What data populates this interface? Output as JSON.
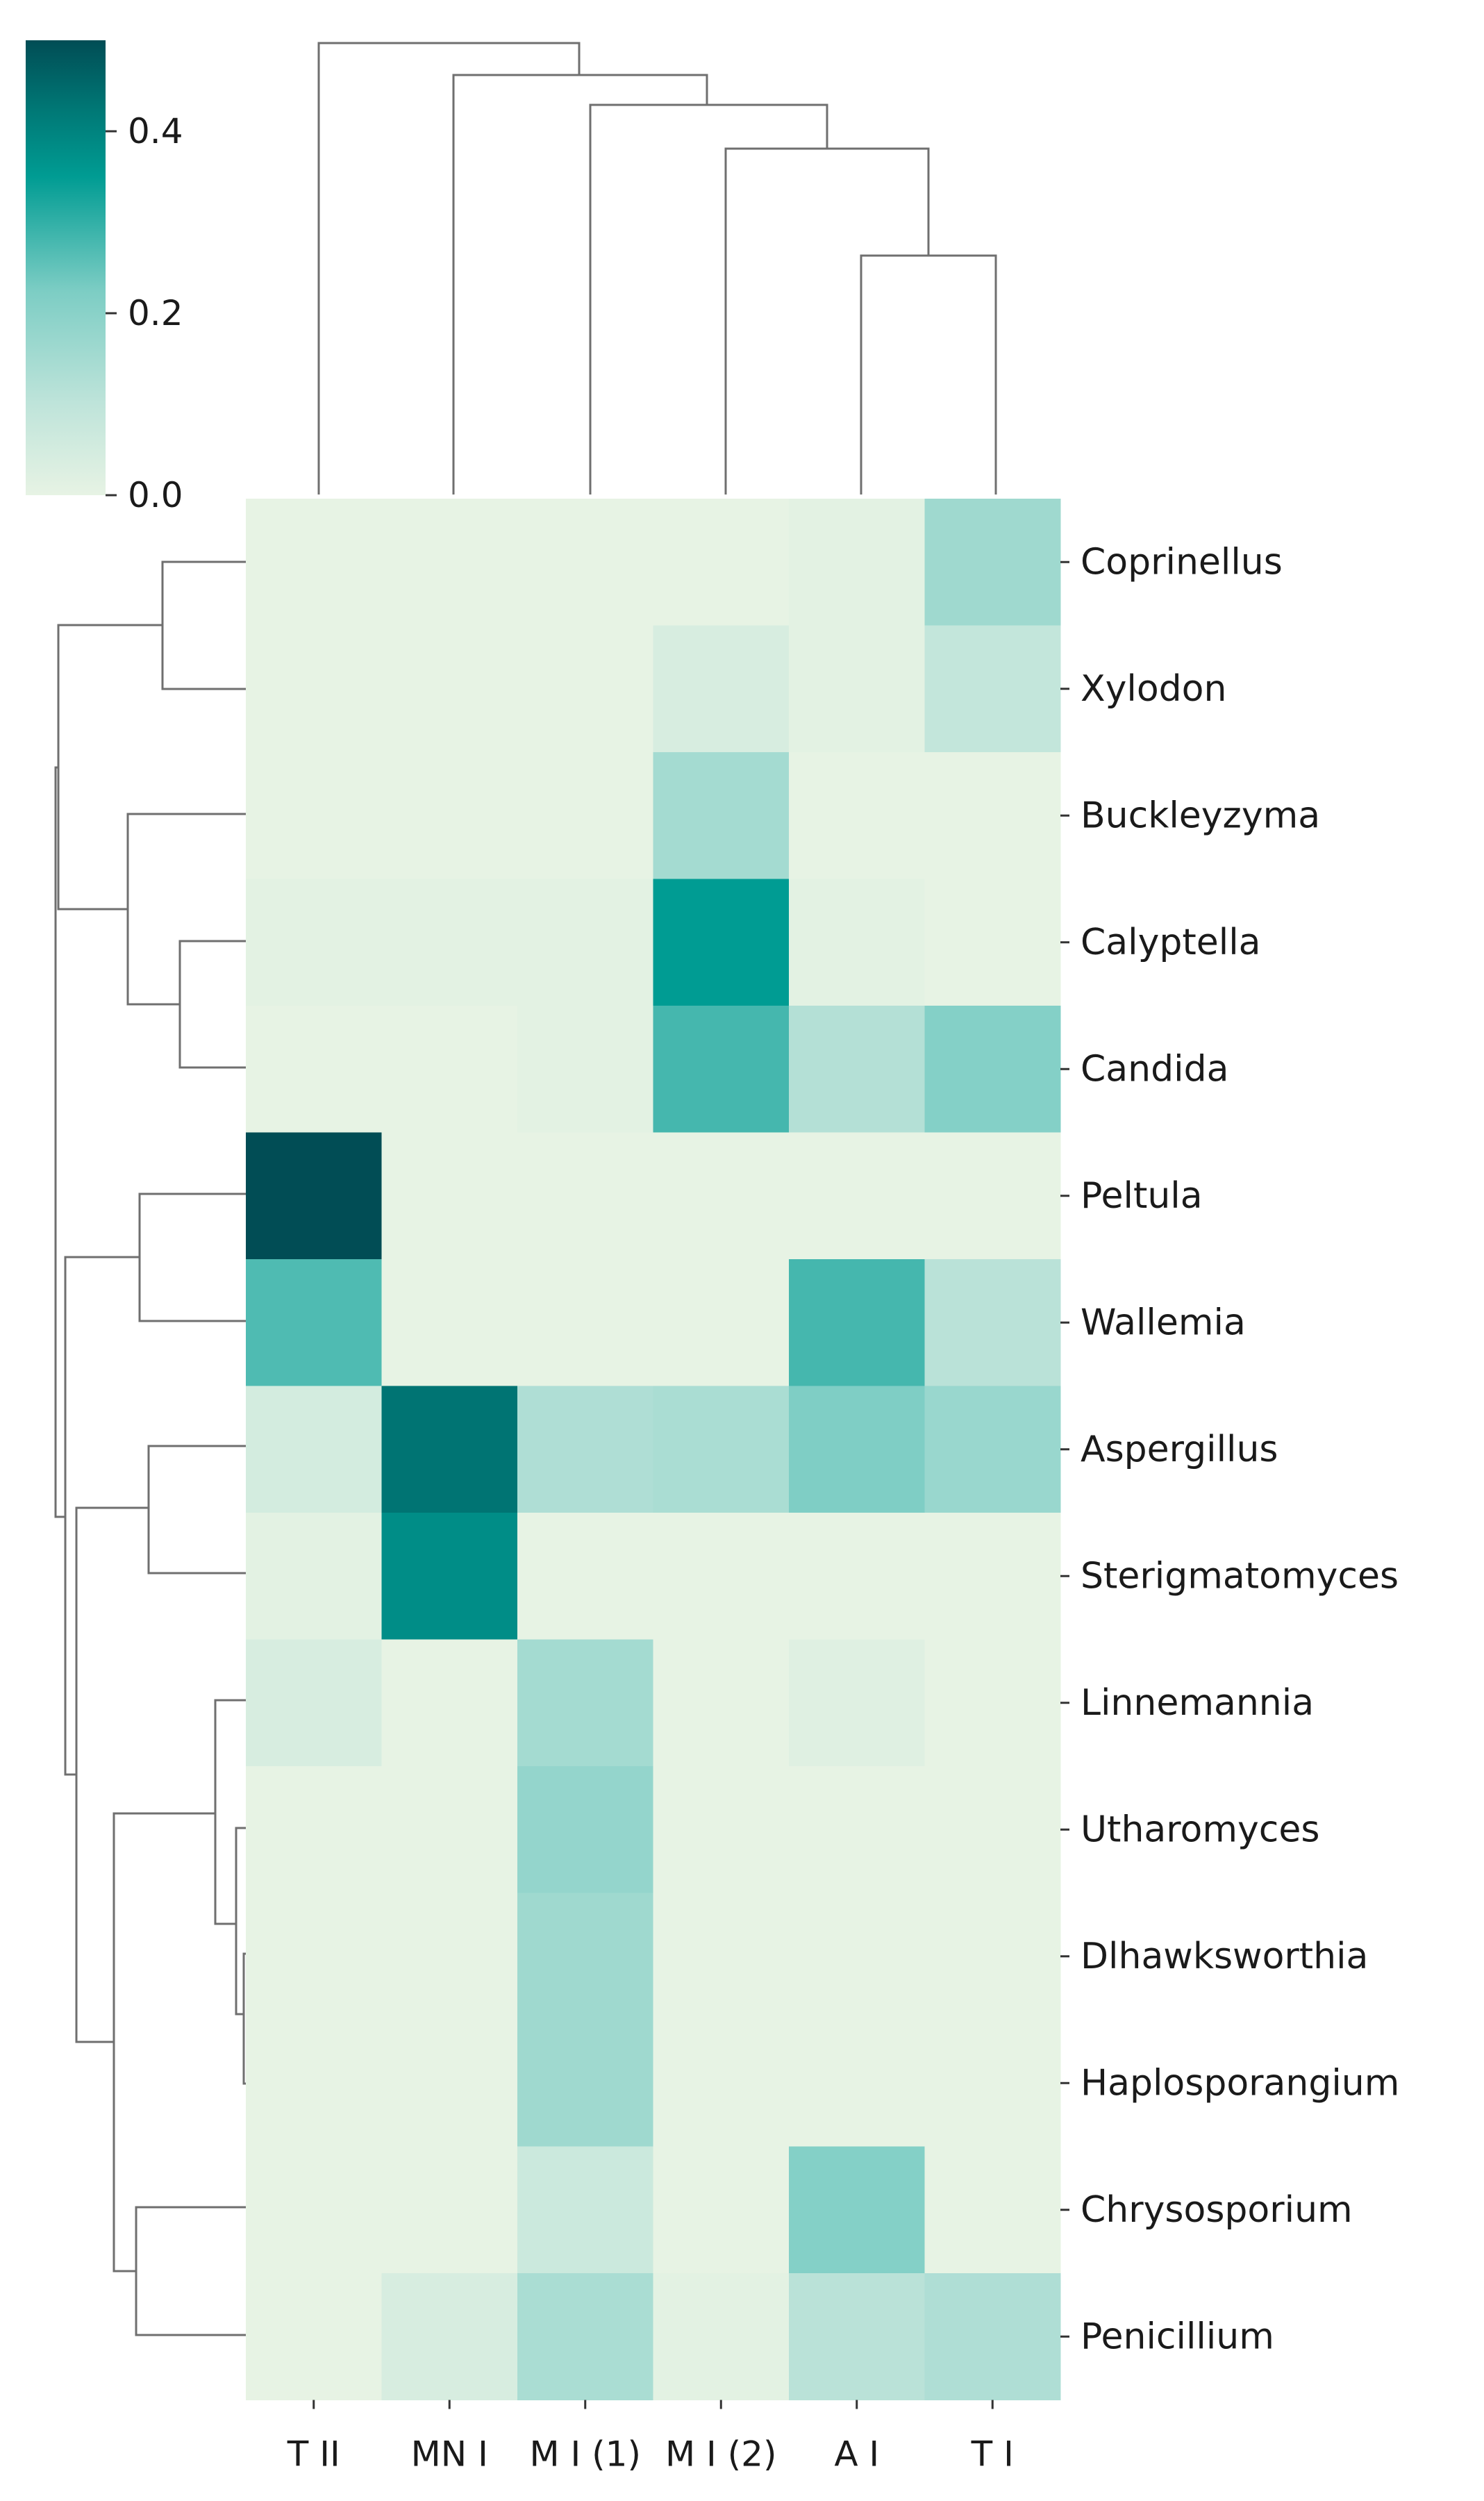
{
  "chart_data": {
    "type": "heatmap",
    "title": "",
    "xlabel": "",
    "ylabel": "",
    "columns": [
      "T II",
      "MN I",
      "M I (1)",
      "M I (2)",
      "A I",
      "T I"
    ],
    "rows": [
      "Coprinellus",
      "Xylodon",
      "Buckleyzyma",
      "Calyptella",
      "Candida",
      "Peltula",
      "Wallemia",
      "Aspergillus",
      "Sterigmatomyces",
      "Linnemannia",
      "Utharomyces",
      "Dlhawksworthia",
      "Haplosporangium",
      "Chrysosporium",
      "Penicillium"
    ],
    "values": [
      [
        0.0,
        0.0,
        0.0,
        0.0,
        0.01,
        0.16
      ],
      [
        0.0,
        0.0,
        0.0,
        0.04,
        0.01,
        0.09
      ],
      [
        0.0,
        0.0,
        0.0,
        0.15,
        0.0,
        0.0
      ],
      [
        0.01,
        0.01,
        0.01,
        0.35,
        0.01,
        0.0
      ],
      [
        0.0,
        0.0,
        0.01,
        0.28,
        0.12,
        0.21
      ],
      [
        0.5,
        0.0,
        0.0,
        0.0,
        0.0,
        0.0
      ],
      [
        0.27,
        0.0,
        0.0,
        0.0,
        0.28,
        0.11
      ],
      [
        0.05,
        0.43,
        0.13,
        0.14,
        0.22,
        0.17
      ],
      [
        0.01,
        0.38,
        0.0,
        0.0,
        0.0,
        0.0
      ],
      [
        0.04,
        0.0,
        0.15,
        0.0,
        0.02,
        0.0
      ],
      [
        0.0,
        0.0,
        0.18,
        0.0,
        0.0,
        0.0
      ],
      [
        0.0,
        0.0,
        0.16,
        0.0,
        0.0,
        0.0
      ],
      [
        0.0,
        0.0,
        0.16,
        0.0,
        0.0,
        0.0
      ],
      [
        0.0,
        0.0,
        0.07,
        0.0,
        0.21,
        0.0
      ],
      [
        0.0,
        0.04,
        0.14,
        0.01,
        0.11,
        0.13
      ]
    ],
    "colorbar": {
      "range": [
        0,
        0.5
      ],
      "ticks": [
        0.0,
        0.2,
        0.4
      ],
      "tick_labels": [
        "0.0",
        "0.2",
        "0.4"
      ],
      "stops": [
        "#e7f3e4",
        "#bfe4da",
        "#7ccdc4",
        "#009c93",
        "#007775",
        "#014d55"
      ]
    },
    "dendrogram_color": "#6f6f6f"
  }
}
